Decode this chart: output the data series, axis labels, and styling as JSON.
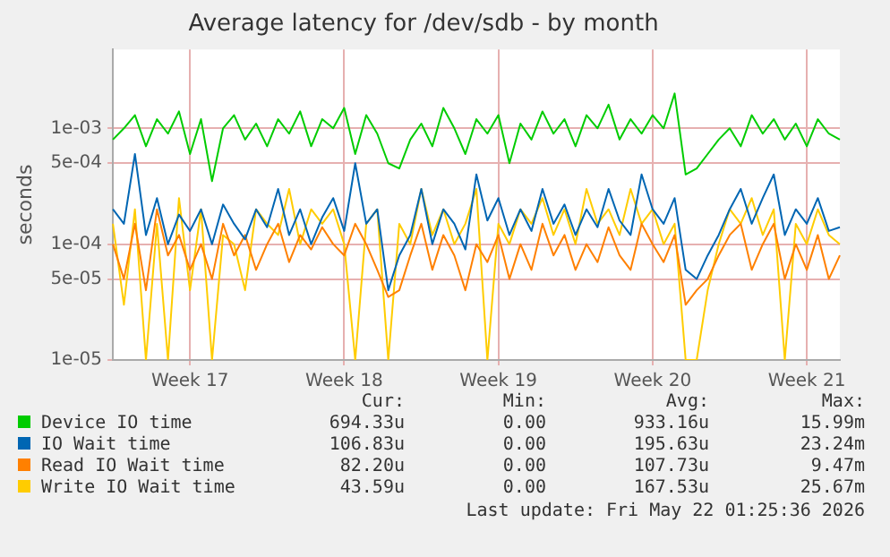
{
  "chart_data": {
    "type": "line",
    "title": "Average latency for /dev/sdb - by month",
    "ylabel": "seconds",
    "log": "y",
    "grid": true,
    "legend": "bottom",
    "marker": "none",
    "line_style": "solid",
    "categories": [
      null,
      null,
      null,
      null,
      null,
      null,
      null,
      "Week 17",
      null,
      null,
      null,
      null,
      null,
      null,
      null,
      null,
      null,
      null,
      null,
      null,
      null,
      "Week 18",
      null,
      null,
      null,
      null,
      null,
      null,
      null,
      null,
      null,
      null,
      null,
      null,
      null,
      "Week 19",
      null,
      null,
      null,
      null,
      null,
      null,
      null,
      null,
      null,
      null,
      null,
      null,
      null,
      "Week 20",
      null,
      null,
      null,
      null,
      null,
      null,
      null,
      null,
      null,
      null,
      null,
      null,
      null,
      "Week 21",
      null,
      null,
      null
    ],
    "ylim": [
      1e-05,
      0.0048
    ],
    "yticks": [
      {
        "value": 1e-05,
        "label": "1e-05"
      },
      {
        "value": 5e-05,
        "label": "5e-05"
      },
      {
        "value": 0.0001,
        "label": "1e-04"
      },
      {
        "value": 0.0005,
        "label": "5e-04"
      },
      {
        "value": 0.001,
        "label": "1e-03"
      }
    ],
    "series": [
      {
        "name": "Device IO time",
        "color": "#00cc00",
        "values": [
          0.0008,
          0.001,
          0.0013,
          0.0007,
          0.0012,
          0.0009,
          0.0014,
          0.0006,
          0.0012,
          0.00035,
          0.001,
          0.0013,
          0.0008,
          0.0011,
          0.0007,
          0.0012,
          0.0009,
          0.0014,
          0.0007,
          0.0012,
          0.001,
          0.0015,
          0.0006,
          0.0013,
          0.0009,
          0.0005,
          0.00045,
          0.0008,
          0.0011,
          0.0007,
          0.0015,
          0.001,
          0.0006,
          0.0012,
          0.0009,
          0.0013,
          0.0005,
          0.0011,
          0.0008,
          0.0014,
          0.0009,
          0.0012,
          0.0007,
          0.0013,
          0.001,
          0.0016,
          0.0008,
          0.0012,
          0.0009,
          0.0013,
          0.001,
          0.002,
          0.0004,
          0.00045,
          0.0006,
          0.0008,
          0.001,
          0.0007,
          0.0013,
          0.0009,
          0.0012,
          0.0008,
          0.0011,
          0.0007,
          0.0012,
          0.0009,
          0.0008
        ]
      },
      {
        "name": "IO Wait time",
        "color": "#0066b3",
        "values": [
          0.0002,
          0.00015,
          0.0006,
          0.00012,
          0.00025,
          0.0001,
          0.00018,
          0.00013,
          0.0002,
          0.0001,
          0.00022,
          0.00015,
          0.00011,
          0.0002,
          0.00014,
          0.0003,
          0.00012,
          0.0002,
          0.0001,
          0.00017,
          0.00025,
          0.00013,
          0.0005,
          0.00015,
          0.0002,
          4e-05,
          8e-05,
          0.00012,
          0.0003,
          0.0001,
          0.0002,
          0.00015,
          9e-05,
          0.0004,
          0.00016,
          0.00025,
          0.00012,
          0.0002,
          0.00013,
          0.0003,
          0.00015,
          0.00022,
          0.00012,
          0.0002,
          0.00014,
          0.0003,
          0.00016,
          0.00012,
          0.0004,
          0.0002,
          0.00015,
          0.00025,
          6e-05,
          5e-05,
          8e-05,
          0.00012,
          0.0002,
          0.0003,
          0.00015,
          0.00025,
          0.0004,
          0.00012,
          0.0002,
          0.00015,
          0.00025,
          0.00013,
          0.00014
        ]
      },
      {
        "name": "Read IO Wait time",
        "color": "#ff8000",
        "values": [
          0.0001,
          5e-05,
          0.00015,
          4e-05,
          0.0002,
          8e-05,
          0.00012,
          6e-05,
          0.0001,
          5e-05,
          0.00015,
          8e-05,
          0.00012,
          6e-05,
          0.0001,
          0.00015,
          7e-05,
          0.00012,
          9e-05,
          0.00014,
          0.0001,
          8e-05,
          0.00015,
          0.0001,
          6e-05,
          3.5e-05,
          4e-05,
          8e-05,
          0.00015,
          6e-05,
          0.00012,
          8e-05,
          4e-05,
          0.0001,
          7e-05,
          0.00012,
          5e-05,
          0.0001,
          6e-05,
          0.00015,
          8e-05,
          0.00012,
          6e-05,
          0.0001,
          7e-05,
          0.00014,
          8e-05,
          6e-05,
          0.00015,
          0.0001,
          7e-05,
          0.00012,
          3e-05,
          4e-05,
          5e-05,
          8e-05,
          0.00012,
          0.00015,
          6e-05,
          0.0001,
          0.00015,
          5e-05,
          0.0001,
          6e-05,
          0.00012,
          5e-05,
          8e-05
        ]
      },
      {
        "name": "Write IO Wait time",
        "color": "#ffcc00",
        "values": [
          0.00015,
          3e-05,
          0.0002,
          1e-05,
          0.00015,
          1e-05,
          0.00025,
          4e-05,
          0.0002,
          1e-05,
          0.00012,
          0.0001,
          4e-05,
          0.0002,
          0.00015,
          0.00012,
          0.0003,
          0.0001,
          0.0002,
          0.00015,
          0.0002,
          0.0001,
          1e-05,
          0.00015,
          0.0002,
          1e-05,
          0.00015,
          0.0001,
          0.0003,
          0.00012,
          0.0002,
          0.0001,
          0.00015,
          0.0003,
          1e-05,
          0.00015,
          0.0001,
          0.0002,
          0.00015,
          0.00025,
          0.00012,
          0.0002,
          0.0001,
          0.0003,
          0.00015,
          0.0002,
          0.00012,
          0.0003,
          0.00015,
          0.0002,
          0.0001,
          0.00015,
          1e-05,
          1e-05,
          4e-05,
          0.0001,
          0.0002,
          0.00015,
          0.00025,
          0.00012,
          0.0002,
          1e-05,
          0.00015,
          0.0001,
          0.0002,
          0.00012,
          0.0001
        ]
      }
    ],
    "annotations": [
      "Cur:",
      "Min:",
      "Avg:",
      "Max:",
      "694.33u",
      "0.00",
      "933.16u",
      "15.99m",
      "106.83u",
      "0.00",
      "195.63u",
      "23.24m",
      "82.20u",
      "0.00",
      "107.73u",
      "9.47m",
      "43.59u",
      "0.00",
      "167.53u",
      "25.67m",
      "Last update: Fri May 22 01:25:36 2026"
    ]
  }
}
